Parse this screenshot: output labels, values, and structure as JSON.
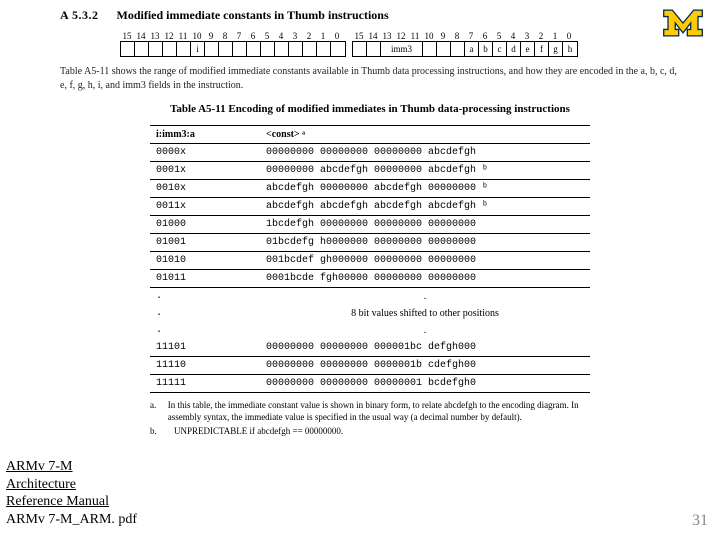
{
  "section": {
    "number": "A 5.3.2",
    "title": "Modified immediate constants in Thumb instructions"
  },
  "bitfield": {
    "left_nums": [
      "15",
      "14",
      "13",
      "12",
      "11",
      "10",
      "9",
      "8",
      "7",
      "6",
      "5",
      "4",
      "3",
      "2",
      "1",
      "0"
    ],
    "left_cells": [
      "",
      "",
      "",
      "",
      "",
      "i",
      "",
      "",
      "",
      "",
      "",
      "",
      "",
      "",
      "",
      ""
    ],
    "right_nums": [
      "15",
      "14",
      "13",
      "12",
      "11",
      "10",
      "9",
      "8",
      "7",
      "6",
      "5",
      "4",
      "3",
      "2",
      "1",
      "0"
    ],
    "right_cells_pre": [
      "",
      ""
    ],
    "right_wide": "imm3",
    "right_cells_mid": [
      "",
      "",
      ""
    ],
    "right_cells_end": [
      "a",
      "b",
      "c",
      "d",
      "e",
      "f",
      "g",
      "h"
    ]
  },
  "caption": "Table A5-11 shows the range of modified immediate constants available in Thumb data processing instructions, and how they are encoded in the a, b, c, d, e, f, g, h, i, and imm3 fields in the instruction.",
  "table": {
    "title": "Table A5-11 Encoding of modified immediates in Thumb data-processing instructions",
    "head": [
      "i:imm3:a",
      "<const> ᵃ"
    ],
    "rows": [
      {
        "c1": "0000x",
        "c2": "00000000 00000000 00000000 abcdefgh"
      },
      {
        "c1": "0001x",
        "c2": "00000000 abcdefgh 00000000 abcdefgh ᵇ"
      },
      {
        "c1": "0010x",
        "c2": "abcdefgh 00000000 abcdefgh 00000000 ᵇ"
      },
      {
        "c1": "0011x",
        "c2": "abcdefgh abcdefgh abcdefgh abcdefgh ᵇ"
      },
      {
        "c1": "01000",
        "c2": "1bcdefgh 00000000 00000000 00000000"
      },
      {
        "c1": "01001",
        "c2": "01bcdefg h0000000 00000000 00000000"
      },
      {
        "c1": "01010",
        "c2": "001bcdef gh000000 00000000 00000000"
      },
      {
        "c1": "01011",
        "c2": "0001bcde fgh00000 00000000 00000000"
      },
      {
        "c1": ".",
        "c2": "."
      },
      {
        "c1": ".",
        "c2": "8 bit values shifted to other positions"
      },
      {
        "c1": ".",
        "c2": "."
      },
      {
        "c1": "11101",
        "c2": "00000000 00000000 000001bc defgh000"
      },
      {
        "c1": "11110",
        "c2": "00000000 00000000 0000001b cdefgh00"
      },
      {
        "c1": "11111",
        "c2": "00000000 00000000 00000001 bcdefgh0"
      }
    ]
  },
  "footnotes": {
    "a": "In this table, the immediate constant value is shown in binary form, to relate abcdefgh to the encoding diagram. In assembly syntax, the immediate value is specified in the usual way (a decimal number by default).",
    "b": "UNPREDICTABLE if abcdefgh == 00000000."
  },
  "reference": {
    "line1": "ARMv 7-M",
    "line2": "Architecture",
    "line3": "Reference Manual",
    "line4": "ARMv 7-M_ARM. pdf"
  },
  "page_number": "31",
  "logo": {
    "fill": "#ffcb05",
    "stroke": "#00274c"
  }
}
